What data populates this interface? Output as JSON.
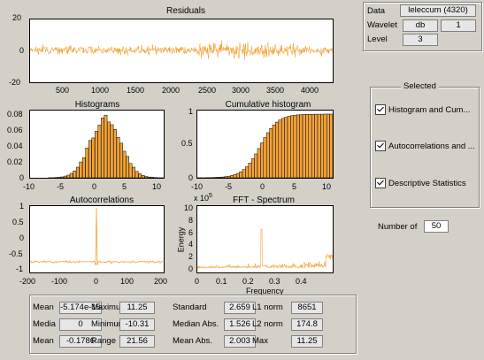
{
  "plots": {
    "residuals": {
      "title": "Residuals",
      "yticks": [
        "20",
        "0",
        "-20"
      ],
      "xticks": [
        "500",
        "1000",
        "1500",
        "2000",
        "2500",
        "3000",
        "3500",
        "4000"
      ]
    },
    "histograms": {
      "title": "Histograms",
      "yticks": [
        "0.08",
        "0.06",
        "0.04",
        "0.02",
        "0"
      ],
      "xticks": [
        "-10",
        "-5",
        "0",
        "5",
        "10"
      ]
    },
    "cumulative": {
      "title": "Cumulative histogram",
      "yticks": [
        "1",
        "0.5",
        "0"
      ],
      "xticks": [
        "-10",
        "-5",
        "0",
        "5",
        "10"
      ]
    },
    "autocorr": {
      "title": "Autocorrelations",
      "yticks": [
        "1",
        "0.5",
        "0",
        "-0.5",
        "-1"
      ],
      "xticks": [
        "-200",
        "-100",
        "0",
        "100",
        "200"
      ]
    },
    "fft": {
      "title": "FFT - Spectrum",
      "exponent_base": "x 10",
      "exponent_power": "5",
      "ylabel": "Energy",
      "xlabel": "Frequency",
      "yticks": [
        "10",
        "8",
        "6",
        "4",
        "2",
        "0"
      ],
      "xticks": [
        "0",
        "0.1",
        "0.2",
        "0.3",
        "0.4"
      ]
    }
  },
  "top_panel": {
    "data_label": "Data",
    "data_value": "leleccum  (4320)",
    "wavelet_label": "Wavelet",
    "wavelet_family": "db",
    "wavelet_number": "1",
    "level_label": "Level",
    "level_value": "3"
  },
  "selected_panel": {
    "title": "Selected",
    "items": [
      {
        "label": "Histogram and Cum...",
        "checked": true
      },
      {
        "label": "Autocorrelations and ...",
        "checked": true
      },
      {
        "label": "Descriptive Statistics",
        "checked": true
      }
    ]
  },
  "number_of": {
    "label": "Number of",
    "value": "50"
  },
  "stats": [
    [
      {
        "label": "Mean",
        "value": "-5.174e-15"
      },
      {
        "label": "Maximu",
        "value": "11.25"
      },
      {
        "label": "Standard",
        "value": "2.659"
      },
      {
        "label": "L1 norm",
        "value": "8651"
      }
    ],
    [
      {
        "label": "Media",
        "value": "0"
      },
      {
        "label": "Minimum",
        "value": "-10.31"
      },
      {
        "label": "Median Abs.",
        "value": "1.526"
      },
      {
        "label": "L2 norm",
        "value": "174.8"
      }
    ],
    [
      {
        "label": "Mean",
        "value": "-0.1786"
      },
      {
        "label": "Range",
        "value": "21.56"
      },
      {
        "label": "Mean Abs.",
        "value": "2.003"
      },
      {
        "label": "Max",
        "value": "11.25"
      }
    ]
  ],
  "colors": {
    "signal": "#f5a43a",
    "bars": "#f5a43a"
  }
}
